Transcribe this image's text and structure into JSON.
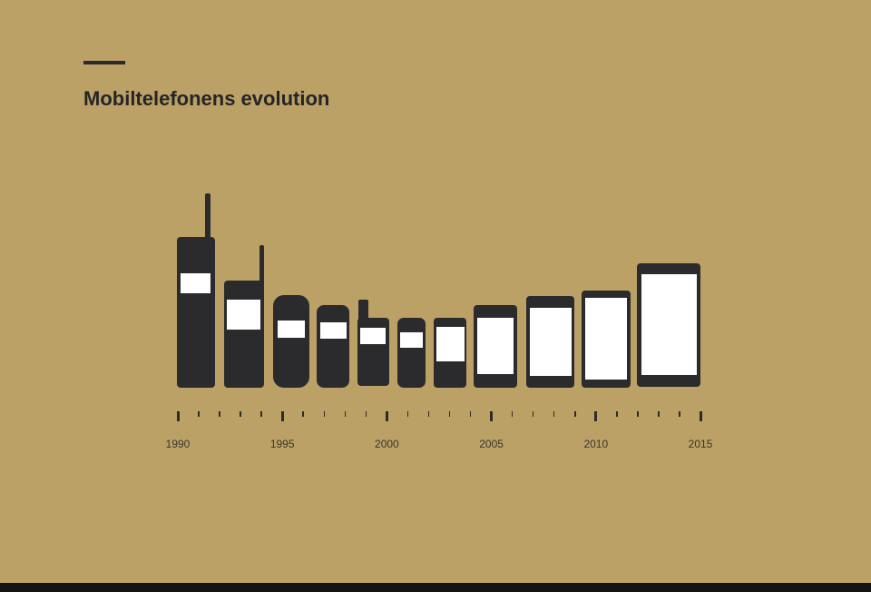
{
  "title": "Mobiltelefonens evolution",
  "axis": {
    "start_year": 1990,
    "end_year": 2015,
    "labels": [
      "1990",
      "1995",
      "2000",
      "2005",
      "2010",
      "2015"
    ]
  },
  "colors": {
    "background": "#bba165",
    "phone": "#2b2b2e",
    "screen": "#ffffff"
  },
  "phones": [
    "phone-1990",
    "phone-1992",
    "phone-1995",
    "phone-1997",
    "phone-1999",
    "phone-2001",
    "phone-2003",
    "phone-2005",
    "phone-2007",
    "phone-2010",
    "phone-2013"
  ]
}
